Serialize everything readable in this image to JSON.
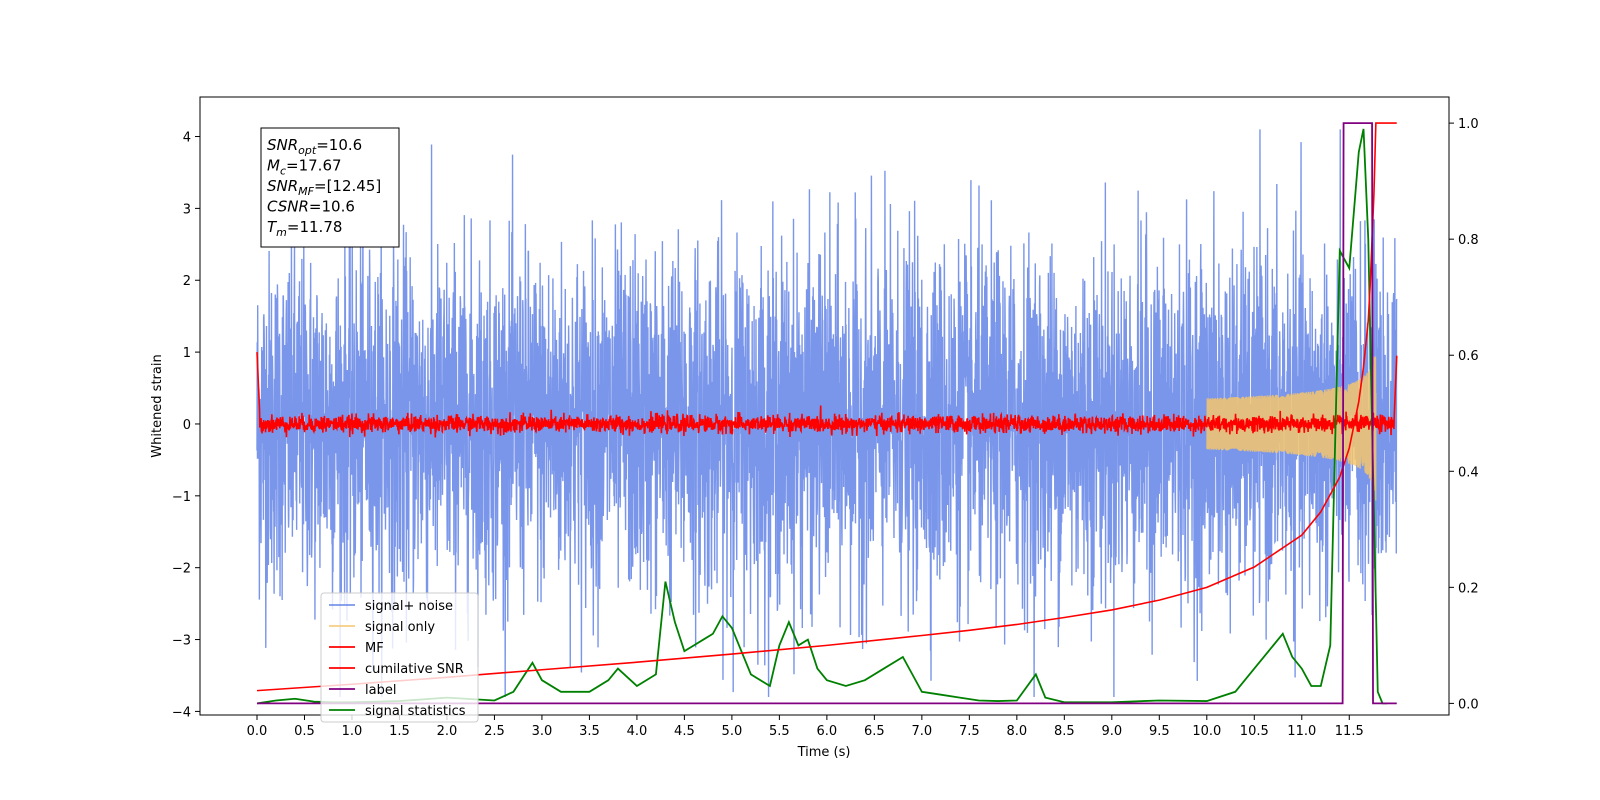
{
  "chart_data": {
    "type": "line",
    "xlabel": "Time (s)",
    "ylabel": "Whitened strain",
    "y2label": "",
    "xlim": [
      -0.6,
      12.55
    ],
    "ylim": [
      -4.05,
      4.55
    ],
    "y2lim": [
      -0.02,
      1.045
    ],
    "x_ticks": [
      "0.0",
      "0.5",
      "1.0",
      "1.5",
      "2.0",
      "2.5",
      "3.0",
      "3.5",
      "4.0",
      "4.5",
      "5.0",
      "5.5",
      "6.0",
      "6.5",
      "7.0",
      "7.5",
      "8.0",
      "8.5",
      "9.0",
      "9.5",
      "10.0",
      "10.5",
      "11.0",
      "11.5"
    ],
    "y_ticks": [
      "−4",
      "−3",
      "−2",
      "−1",
      "0",
      "1",
      "2",
      "3",
      "4"
    ],
    "y2_ticks": [
      "0.0",
      "0.2",
      "0.4",
      "0.6",
      "0.8",
      "1.0"
    ],
    "grid": false,
    "legend_position": "lower-left",
    "annotation": {
      "lines": [
        {
          "sym": "SNR",
          "sub": "opt",
          "value": "=10.6"
        },
        {
          "sym": "M",
          "sub": "c",
          "value": "=17.67"
        },
        {
          "sym": "SNR",
          "sub": "MF",
          "value": "=[12.45]"
        },
        {
          "sym": "CSNR",
          "sub": "",
          "value": "=10.6"
        },
        {
          "sym": "T",
          "sub": "m",
          "value": "=11.78"
        }
      ]
    },
    "series": [
      {
        "name": "signal+ noise",
        "color": "#4169e1",
        "axis": "left",
        "kind": "noise",
        "x_start": 0.0,
        "x_end": 12.0,
        "std": 0.95
      },
      {
        "name": "signal only",
        "color": "#f5c66d",
        "axis": "left",
        "kind": "chirp",
        "x_start": 10.0,
        "x_end": 11.78,
        "amplitude_end": 1.1
      },
      {
        "name": "MF",
        "color": "#ff0000",
        "axis": "left",
        "kind": "mf",
        "x_start": 0.0,
        "x_end": 12.0
      },
      {
        "name": "cumilative SNR",
        "color": "#ff0000",
        "axis": "right",
        "x": [
          0.0,
          1.0,
          2.0,
          3.0,
          4.0,
          5.0,
          6.0,
          7.0,
          7.5,
          8.0,
          8.5,
          9.0,
          9.5,
          10.0,
          10.5,
          11.0,
          11.2,
          11.4,
          11.5,
          11.6,
          11.65,
          11.7,
          11.72,
          11.74,
          11.76,
          11.78,
          11.85,
          12.0
        ],
        "y": [
          0.022,
          0.033,
          0.045,
          0.058,
          0.071,
          0.085,
          0.1,
          0.117,
          0.126,
          0.136,
          0.148,
          0.161,
          0.178,
          0.2,
          0.235,
          0.29,
          0.33,
          0.39,
          0.44,
          0.52,
          0.58,
          0.66,
          0.72,
          0.8,
          0.88,
          1.0,
          1.0,
          1.0
        ]
      },
      {
        "name": "label",
        "color": "#800080",
        "axis": "right",
        "x": [
          0.0,
          11.43,
          11.44,
          11.74,
          11.75,
          12.0
        ],
        "y": [
          0.0,
          0.0,
          1.0,
          1.0,
          0.0,
          0.0
        ]
      },
      {
        "name": "signal statistics",
        "color": "#008000",
        "axis": "right",
        "x": [
          0.0,
          0.2,
          0.4,
          0.6,
          0.8,
          1.0,
          1.5,
          2.0,
          2.5,
          2.7,
          2.9,
          3.0,
          3.2,
          3.5,
          3.7,
          3.8,
          4.0,
          4.2,
          4.3,
          4.4,
          4.5,
          4.6,
          4.7,
          4.8,
          4.9,
          5.0,
          5.1,
          5.2,
          5.4,
          5.5,
          5.6,
          5.7,
          5.8,
          5.9,
          6.0,
          6.2,
          6.4,
          6.6,
          6.8,
          6.9,
          7.0,
          7.2,
          7.4,
          7.6,
          7.8,
          8.0,
          8.2,
          8.3,
          8.5,
          9.0,
          9.5,
          10.0,
          10.3,
          10.5,
          10.7,
          10.8,
          10.9,
          11.0,
          11.1,
          11.2,
          11.3,
          11.4,
          11.5,
          11.55,
          11.6,
          11.65,
          11.7,
          11.75,
          11.8,
          11.85,
          11.9
        ],
        "y": [
          0.0,
          0.005,
          0.008,
          0.003,
          0.002,
          0.002,
          0.004,
          0.01,
          0.005,
          0.02,
          0.07,
          0.04,
          0.02,
          0.02,
          0.04,
          0.06,
          0.03,
          0.05,
          0.21,
          0.14,
          0.09,
          0.1,
          0.11,
          0.12,
          0.15,
          0.13,
          0.09,
          0.05,
          0.03,
          0.1,
          0.14,
          0.1,
          0.11,
          0.06,
          0.04,
          0.03,
          0.04,
          0.06,
          0.08,
          0.05,
          0.02,
          0.015,
          0.01,
          0.005,
          0.004,
          0.005,
          0.05,
          0.01,
          0.002,
          0.002,
          0.005,
          0.004,
          0.02,
          0.06,
          0.1,
          0.12,
          0.08,
          0.06,
          0.03,
          0.03,
          0.1,
          0.78,
          0.75,
          0.85,
          0.95,
          0.99,
          0.8,
          0.4,
          0.02,
          0.0,
          0.0
        ]
      }
    ]
  }
}
